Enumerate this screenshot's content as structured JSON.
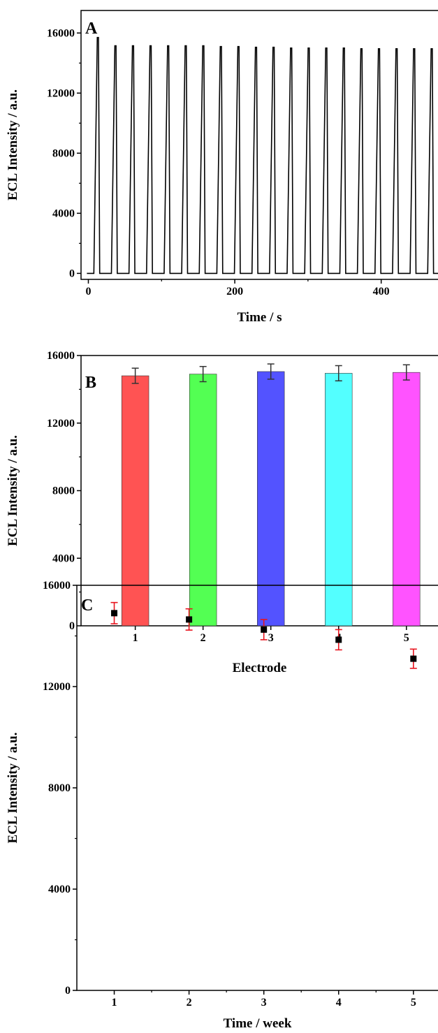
{
  "chart_data": [
    {
      "panel": "A",
      "type": "line",
      "xlabel": "Time / s",
      "ylabel": "ECL Intensity / a.u.",
      "x_ticks": [
        0,
        200,
        400
      ],
      "y_ticks": [
        0,
        4000,
        8000,
        12000,
        16000
      ],
      "xlim": [
        -10,
        490
      ],
      "ylim": [
        -400,
        17500
      ],
      "grid": false,
      "peak_times": [
        13,
        37,
        61,
        85,
        109,
        133,
        157,
        181,
        205,
        229,
        253,
        277,
        301,
        325,
        349,
        373,
        397,
        421,
        445,
        469
      ],
      "peak_values": [
        15700,
        15150,
        15150,
        15150,
        15150,
        15150,
        15150,
        15100,
        15100,
        15050,
        15050,
        15000,
        15000,
        15000,
        15000,
        14950,
        14950,
        14950,
        14950,
        14950
      ],
      "baseline": 0,
      "color": "#000000"
    },
    {
      "panel": "B",
      "type": "bar",
      "xlabel": "Electrode",
      "ylabel": "ECL Intensity / a.u.",
      "categories": [
        "1",
        "2",
        "3",
        "4",
        "5"
      ],
      "values": [
        14800,
        14900,
        15050,
        14950,
        15000
      ],
      "errors": [
        450,
        450,
        450,
        450,
        450
      ],
      "colors": [
        "#ff4a4a",
        "#4aff4a",
        "#4a4aff",
        "#4affff",
        "#ff4aff"
      ],
      "y_ticks": [
        0,
        4000,
        8000,
        12000,
        16000
      ],
      "ylim": [
        0,
        16000
      ],
      "xlim": [
        0.2,
        5.6
      ],
      "grid": false
    },
    {
      "panel": "C",
      "type": "scatter",
      "xlabel": "Time / week",
      "ylabel": "ECL Intensity / a.u.",
      "x": [
        1,
        2,
        3,
        4,
        5
      ],
      "y": [
        14900,
        14650,
        14250,
        13850,
        13100
      ],
      "errors": [
        420,
        420,
        400,
        400,
        380
      ],
      "x_ticks": [
        1,
        2,
        3,
        4,
        5
      ],
      "y_ticks": [
        0,
        4000,
        8000,
        12000,
        16000
      ],
      "xlim": [
        0.5,
        5.45
      ],
      "ylim": [
        0,
        16000
      ],
      "marker_color": "#000000",
      "error_color": "#e8141e",
      "grid": false
    }
  ]
}
